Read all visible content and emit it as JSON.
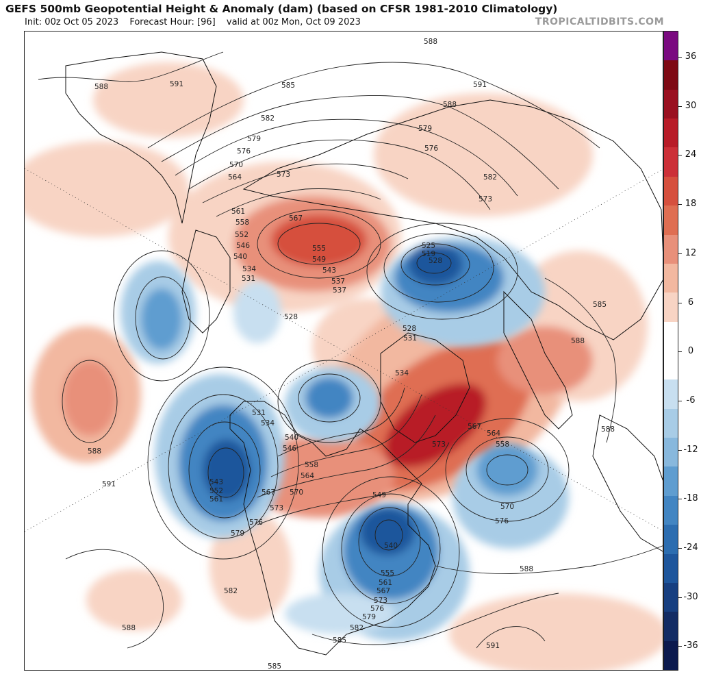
{
  "header": {
    "title": "GEFS 500mb Geopotential Height & Anomaly (dam) (based on CFSR 1981-2010 Climatology)",
    "init": "Init: 00z Oct 05 2023",
    "forecast_hour": "Forecast Hour: [96]",
    "valid": "valid at 00z Mon, Oct 09 2023"
  },
  "credit": "TROPICALTIDBITS.COM",
  "colorbar": {
    "labels": [
      "36",
      "30",
      "24",
      "18",
      "12",
      "6",
      "0",
      "-6",
      "-12",
      "-18",
      "-24",
      "-30",
      "-36"
    ],
    "colors": [
      "#7a0a80",
      "#7e0a14",
      "#9a1020",
      "#b81c28",
      "#cc3038",
      "#d6503e",
      "#df6e52",
      "#e8907a",
      "#f2b8a0",
      "#f8d4c4",
      "#ffffff",
      "#ffffff",
      "#c8dff0",
      "#a8cce6",
      "#88b8dd",
      "#5f9dd0",
      "#4285c2",
      "#2c6db0",
      "#1e569c",
      "#173f80",
      "#132c64",
      "#0c1a4e"
    ]
  },
  "height_labels": [
    "588",
    "591",
    "585",
    "582",
    "579",
    "576",
    "570",
    "564",
    "573",
    "567",
    "561",
    "558",
    "552",
    "546",
    "540",
    "534",
    "531",
    "555",
    "549",
    "543",
    "537",
    "528",
    "525",
    "519",
    "588",
    "591",
    "588",
    "582",
    "579",
    "576",
    "573",
    "585",
    "588",
    "534",
    "567",
    "564",
    "558",
    "573",
    "570",
    "576",
    "588",
    "591",
    "588",
    "531",
    "534",
    "540",
    "546",
    "558",
    "564",
    "567",
    "570",
    "573",
    "576",
    "579",
    "582",
    "585",
    "588",
    "549",
    "540",
    "555",
    "561",
    "567",
    "573",
    "576",
    "579",
    "582",
    "585",
    "588",
    "591",
    "543",
    "552",
    "561",
    "528",
    "537",
    "528",
    "531"
  ]
}
